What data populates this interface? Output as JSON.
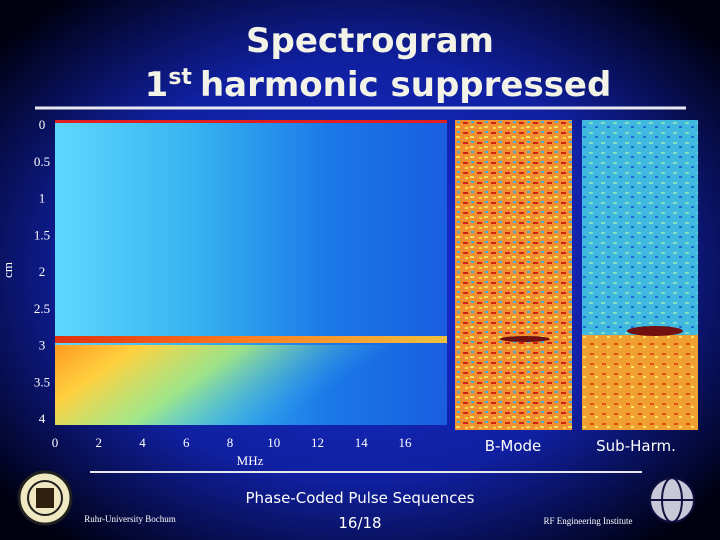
{
  "title": {
    "line1": "Spectrogram",
    "line2_prefix": "1",
    "line2_superscript": "st",
    "line2_rest": "harmonic suppressed"
  },
  "spectrogram": {
    "y_label": "cm",
    "x_label": "MHz",
    "y_ticks": [
      "0",
      "0.5",
      "1",
      "1.5",
      "2",
      "2.5",
      "3",
      "3.5",
      "4"
    ],
    "x_ticks": [
      "0",
      "2",
      "4",
      "6",
      "8",
      "10",
      "12",
      "14",
      "16"
    ]
  },
  "panels": [
    "B-Mode",
    "Sub-Harm."
  ],
  "footer": {
    "center": "Phase-Coded Pulse Sequences",
    "left": "Ruhr-University Bochum",
    "page": "16/18",
    "right": "RF Engineering Institute"
  }
}
